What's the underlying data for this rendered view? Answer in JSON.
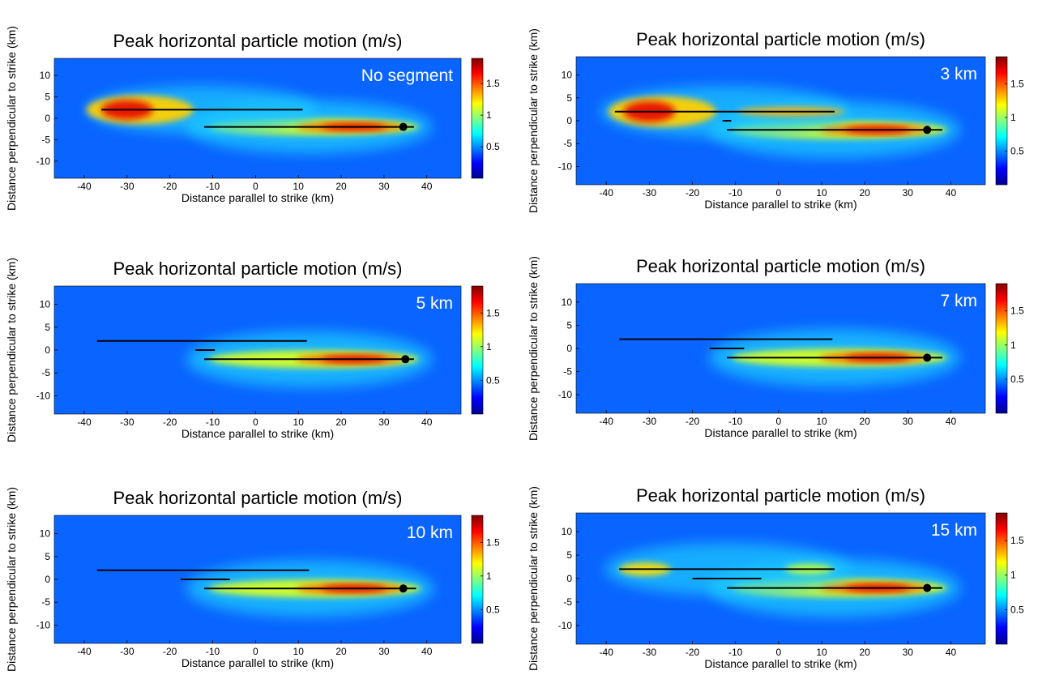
{
  "chart_data": [
    {
      "type": "heatmap",
      "title": "Peak horizontal particle motion (m/s)",
      "annotation": "No segment",
      "xlabel": "Distance parallel to strike (km)",
      "ylabel": "Distance perpendicular to strike (km)",
      "xlim": [
        -47,
        48
      ],
      "ylim": [
        -14,
        14
      ],
      "xticks": [
        -40,
        -30,
        -20,
        -10,
        0,
        10,
        20,
        30,
        40
      ],
      "yticks": [
        10,
        5,
        0,
        -5,
        -10
      ],
      "colorbar": {
        "range": [
          0,
          1.9
        ],
        "ticks": [
          0.5,
          1,
          1.5
        ],
        "colormap": "jet"
      },
      "faults": [
        {
          "name": "northern fault",
          "x": [
            -36,
            11
          ],
          "y": [
            2,
            2
          ]
        },
        {
          "name": "main fault",
          "x": [
            -12,
            37
          ],
          "y": [
            -2,
            -2
          ]
        }
      ],
      "hypocenter": {
        "x": 34.5,
        "y": -2
      }
    },
    {
      "type": "heatmap",
      "title": "Peak horizontal particle motion (m/s)",
      "annotation": "3 km",
      "xlabel": "Distance parallel to strike (km)",
      "ylabel": "Distance perpendicular to strike (km)",
      "xlim": [
        -47,
        48
      ],
      "ylim": [
        -14,
        14
      ],
      "xticks": [
        -40,
        -30,
        -20,
        -10,
        0,
        10,
        20,
        30,
        40
      ],
      "yticks": [
        10,
        5,
        0,
        -5,
        -10
      ],
      "colorbar": {
        "range": [
          0,
          1.9
        ],
        "ticks": [
          0.5,
          1,
          1.5
        ],
        "colormap": "jet"
      },
      "faults": [
        {
          "name": "northern fault",
          "x": [
            -38,
            13
          ],
          "y": [
            2,
            2
          ]
        },
        {
          "name": "linking segment",
          "x": [
            -13,
            -11
          ],
          "y": [
            0,
            0
          ]
        },
        {
          "name": "main fault",
          "x": [
            -12,
            38
          ],
          "y": [
            -2,
            -2
          ]
        }
      ],
      "hypocenter": {
        "x": 34.5,
        "y": -2
      }
    },
    {
      "type": "heatmap",
      "title": "Peak horizontal particle motion (m/s)",
      "annotation": "5 km",
      "xlabel": "Distance parallel to strike (km)",
      "ylabel": "Distance perpendicular to strike (km)",
      "xlim": [
        -47,
        48
      ],
      "ylim": [
        -14,
        14
      ],
      "xticks": [
        -40,
        -30,
        -20,
        -10,
        0,
        10,
        20,
        30,
        40
      ],
      "yticks": [
        10,
        5,
        0,
        -5,
        -10
      ],
      "colorbar": {
        "range": [
          0,
          1.9
        ],
        "ticks": [
          0.5,
          1,
          1.5
        ],
        "colormap": "jet"
      },
      "faults": [
        {
          "name": "northern fault",
          "x": [
            -37,
            12
          ],
          "y": [
            2,
            2
          ]
        },
        {
          "name": "linking segment",
          "x": [
            -14,
            -9.5
          ],
          "y": [
            0,
            0
          ]
        },
        {
          "name": "main fault",
          "x": [
            -12,
            37
          ],
          "y": [
            -2,
            -2
          ]
        }
      ],
      "hypocenter": {
        "x": 35,
        "y": -2
      }
    },
    {
      "type": "heatmap",
      "title": "Peak horizontal particle motion (m/s)",
      "annotation": "7 km",
      "xlabel": "Distance parallel to strike (km)",
      "ylabel": "Distance perpendicular to strike (km)",
      "xlim": [
        -47,
        48
      ],
      "ylim": [
        -14,
        14
      ],
      "xticks": [
        -40,
        -30,
        -20,
        -10,
        0,
        10,
        20,
        30,
        40
      ],
      "yticks": [
        10,
        5,
        0,
        -5,
        -10
      ],
      "colorbar": {
        "range": [
          0,
          1.9
        ],
        "ticks": [
          0.5,
          1,
          1.5
        ],
        "colormap": "jet"
      },
      "faults": [
        {
          "name": "northern fault",
          "x": [
            -37,
            12.5
          ],
          "y": [
            2,
            2
          ]
        },
        {
          "name": "linking segment",
          "x": [
            -16,
            -8
          ],
          "y": [
            0,
            0
          ]
        },
        {
          "name": "main fault",
          "x": [
            -12,
            38
          ],
          "y": [
            -2,
            -2
          ]
        }
      ],
      "hypocenter": {
        "x": 34.5,
        "y": -2
      }
    },
    {
      "type": "heatmap",
      "title": "Peak horizontal particle motion (m/s)",
      "annotation": "10 km",
      "xlabel": "Distance parallel to strike (km)",
      "ylabel": "Distance perpendicular to strike (km)",
      "xlim": [
        -47,
        48
      ],
      "ylim": [
        -14,
        14
      ],
      "xticks": [
        -40,
        -30,
        -20,
        -10,
        0,
        10,
        20,
        30,
        40
      ],
      "yticks": [
        10,
        5,
        0,
        -5,
        -10
      ],
      "colorbar": {
        "range": [
          0,
          1.9
        ],
        "ticks": [
          0.5,
          1,
          1.5
        ],
        "colormap": "jet"
      },
      "faults": [
        {
          "name": "northern fault",
          "x": [
            -37,
            12.5
          ],
          "y": [
            2,
            2
          ]
        },
        {
          "name": "linking segment",
          "x": [
            -17.5,
            -6
          ],
          "y": [
            0,
            0
          ]
        },
        {
          "name": "main fault",
          "x": [
            -12,
            37.5
          ],
          "y": [
            -2,
            -2
          ]
        }
      ],
      "hypocenter": {
        "x": 34.5,
        "y": -2
      }
    },
    {
      "type": "heatmap",
      "title": "Peak horizontal particle motion (m/s)",
      "annotation": "15 km",
      "xlabel": "Distance parallel to strike (km)",
      "ylabel": "Distance perpendicular to strike (km)",
      "xlim": [
        -47,
        48
      ],
      "ylim": [
        -14,
        14
      ],
      "xticks": [
        -40,
        -30,
        -20,
        -10,
        0,
        10,
        20,
        30,
        40
      ],
      "yticks": [
        10,
        5,
        0,
        -5,
        -10
      ],
      "colorbar": {
        "range": [
          0,
          1.9
        ],
        "ticks": [
          0.5,
          1,
          1.5
        ],
        "colormap": "jet"
      },
      "faults": [
        {
          "name": "northern fault",
          "x": [
            -37,
            13
          ],
          "y": [
            2,
            2
          ]
        },
        {
          "name": "linking segment",
          "x": [
            -20,
            -4
          ],
          "y": [
            0,
            0
          ]
        },
        {
          "name": "main fault",
          "x": [
            -12,
            38
          ],
          "y": [
            -2,
            -2
          ]
        }
      ],
      "hypocenter": {
        "x": 34.5,
        "y": -2
      }
    }
  ]
}
